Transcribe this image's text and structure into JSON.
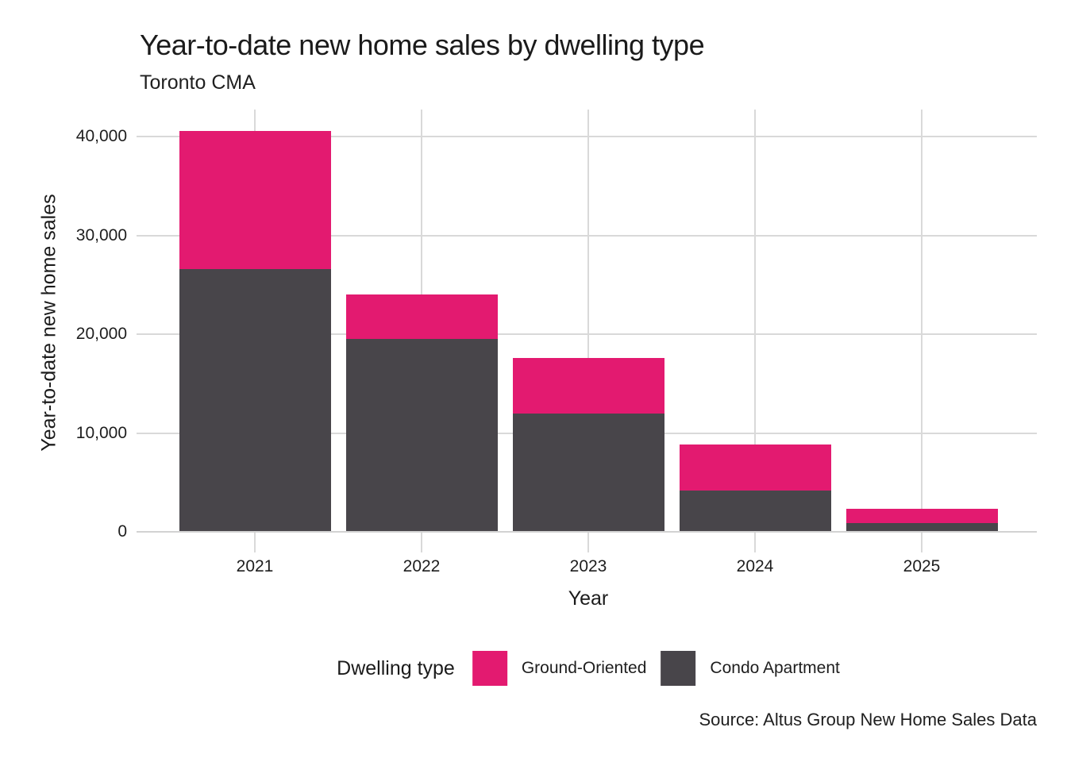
{
  "header": {
    "title": "Year-to-date new home sales by dwelling type",
    "subtitle": "Toronto CMA"
  },
  "chart_data": {
    "type": "bar",
    "stacked": true,
    "title": "Year-to-date new home sales by dwelling type",
    "subtitle": "Toronto CMA",
    "xlabel": "Year",
    "ylabel": "Year-to-date new home sales",
    "categories": [
      "2021",
      "2022",
      "2023",
      "2024",
      "2025"
    ],
    "series": [
      {
        "name": "Ground-Oriented",
        "color": "#E31A70",
        "values": [
          14000,
          4500,
          5600,
          4600,
          1400
        ]
      },
      {
        "name": "Condo Apartment",
        "color": "#48454A",
        "values": [
          26600,
          19500,
          12000,
          4200,
          900
        ]
      }
    ],
    "totals": [
      40600,
      24000,
      17600,
      8800,
      2300
    ],
    "ylim": [
      0,
      42700
    ],
    "yticks": [
      0,
      10000,
      20000,
      30000,
      40000
    ],
    "ytick_labels": [
      "0",
      "10,000",
      "20,000",
      "30,000",
      "40,000"
    ],
    "grid": true,
    "legend_title": "Dwelling type",
    "legend_position": "bottom"
  },
  "footer": {
    "source": "Source: Altus Group New Home Sales Data"
  },
  "colors": {
    "ground_oriented": "#E31A70",
    "condo_apartment": "#48454A",
    "gridline": "#D9D9D9",
    "axis_line": "#D2D2D2",
    "text": "#1b1b1b",
    "background": "#ffffff"
  }
}
